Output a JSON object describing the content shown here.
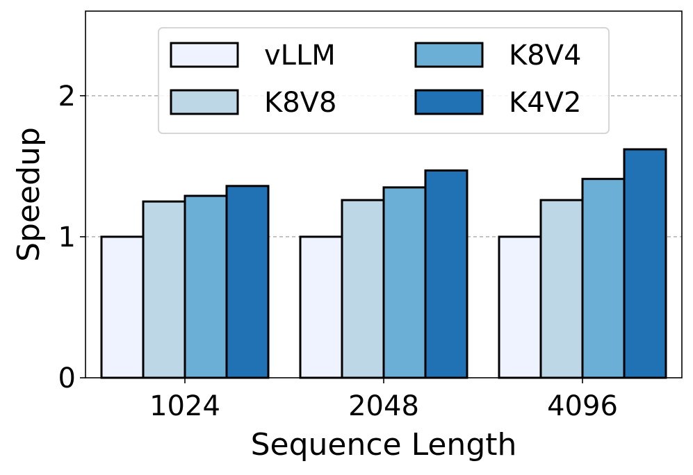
{
  "chart_data": {
    "type": "bar",
    "title": "",
    "xlabel": "Sequence Length",
    "ylabel": "Speedup",
    "categories": [
      "1024",
      "2048",
      "4096"
    ],
    "ylim": [
      0,
      2.6
    ],
    "yticks": [
      0,
      1,
      2
    ],
    "ytick_labels": [
      "0",
      "1",
      "2"
    ],
    "grid": "y-major-dashed",
    "legend": {
      "location": "upper-center",
      "columns": 2
    },
    "series": [
      {
        "name": "vLLM",
        "color": "#eff3ff",
        "values": [
          1.0,
          1.0,
          1.0
        ]
      },
      {
        "name": "K8V8",
        "color": "#bdd7e7",
        "values": [
          1.25,
          1.26,
          1.26
        ]
      },
      {
        "name": "K8V4",
        "color": "#6baed6",
        "values": [
          1.29,
          1.35,
          1.41
        ]
      },
      {
        "name": "K4V2",
        "color": "#2171b5",
        "values": [
          1.36,
          1.47,
          1.62
        ]
      }
    ]
  }
}
